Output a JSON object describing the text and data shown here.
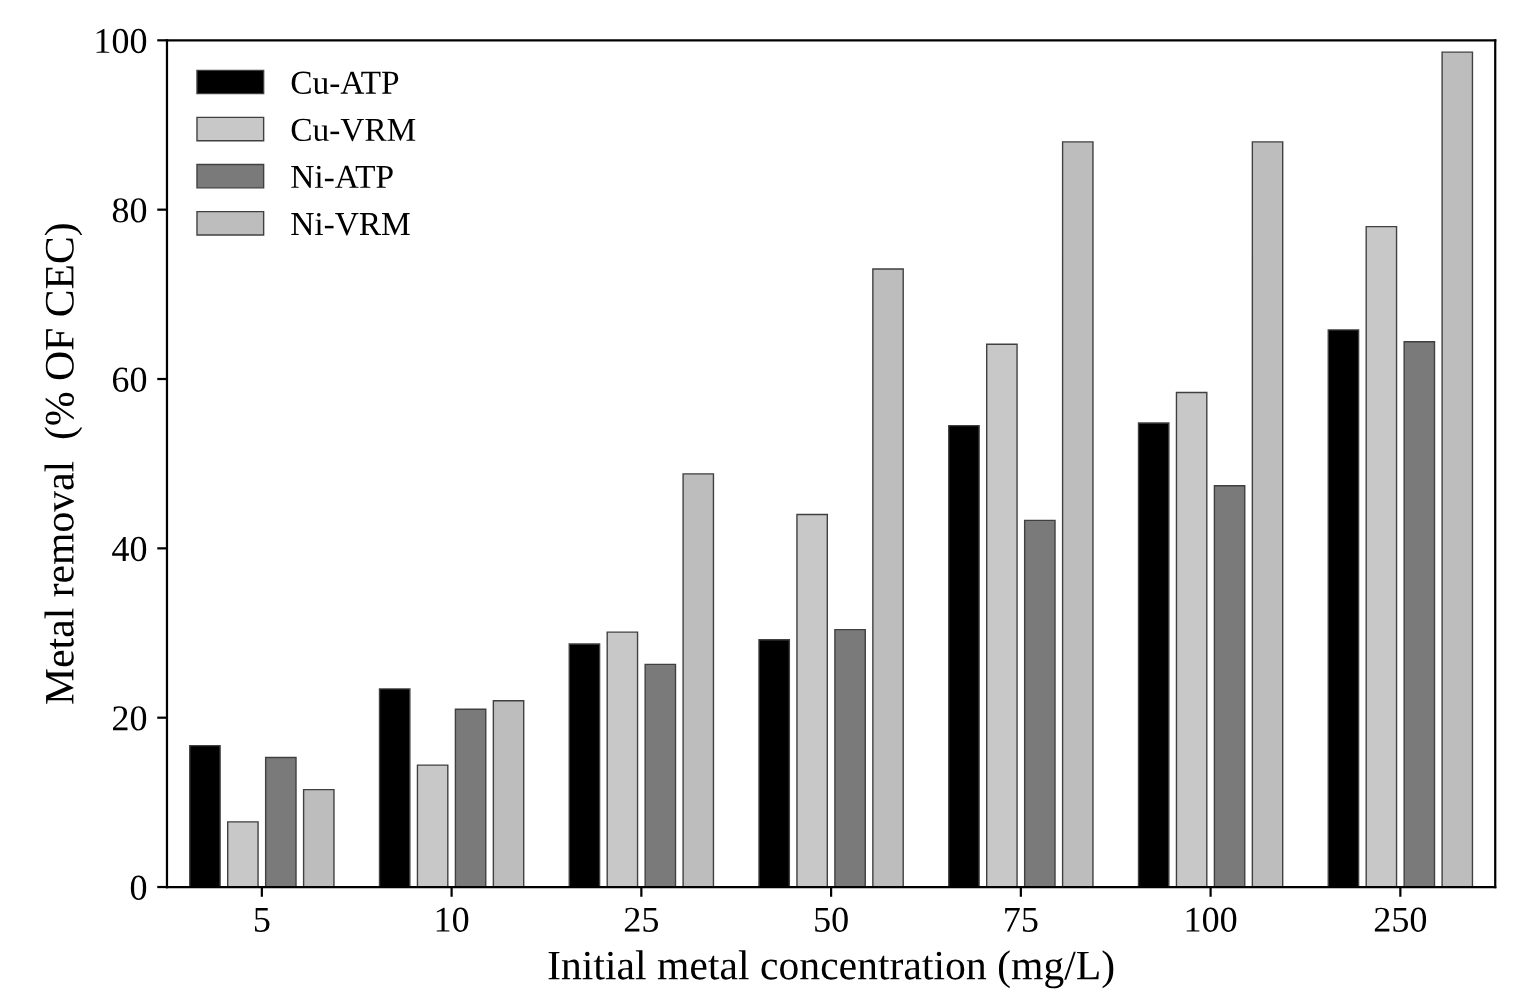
{
  "chart_data": {
    "type": "bar",
    "xlabel": "Initial metal concentration (mg/L)",
    "ylabel": "Metal removal  (% OF CEC)",
    "categories": [
      "5",
      "10",
      "25",
      "50",
      "75",
      "100",
      "250"
    ],
    "series": [
      {
        "name": "Cu-ATP",
        "color": "#000000",
        "values": [
          16.7,
          23.4,
          28.7,
          29.2,
          54.5,
          54.8,
          65.8
        ]
      },
      {
        "name": "Cu-VRM",
        "color": "#c8c8c8",
        "values": [
          7.7,
          14.4,
          30.1,
          44,
          64.1,
          58.4,
          78
        ]
      },
      {
        "name": "Ni-ATP",
        "color": "#7a7a7a",
        "values": [
          15.3,
          21,
          26.3,
          30.4,
          43.3,
          47.4,
          64.4
        ]
      },
      {
        "name": "Ni-VRM",
        "color": "#bdbdbd",
        "values": [
          11.5,
          22,
          48.8,
          73,
          88,
          88,
          98.6
        ]
      }
    ],
    "ylim": [
      0,
      100
    ],
    "yticks": [
      0,
      20,
      40,
      60,
      80,
      100
    ],
    "legend": "top left"
  }
}
